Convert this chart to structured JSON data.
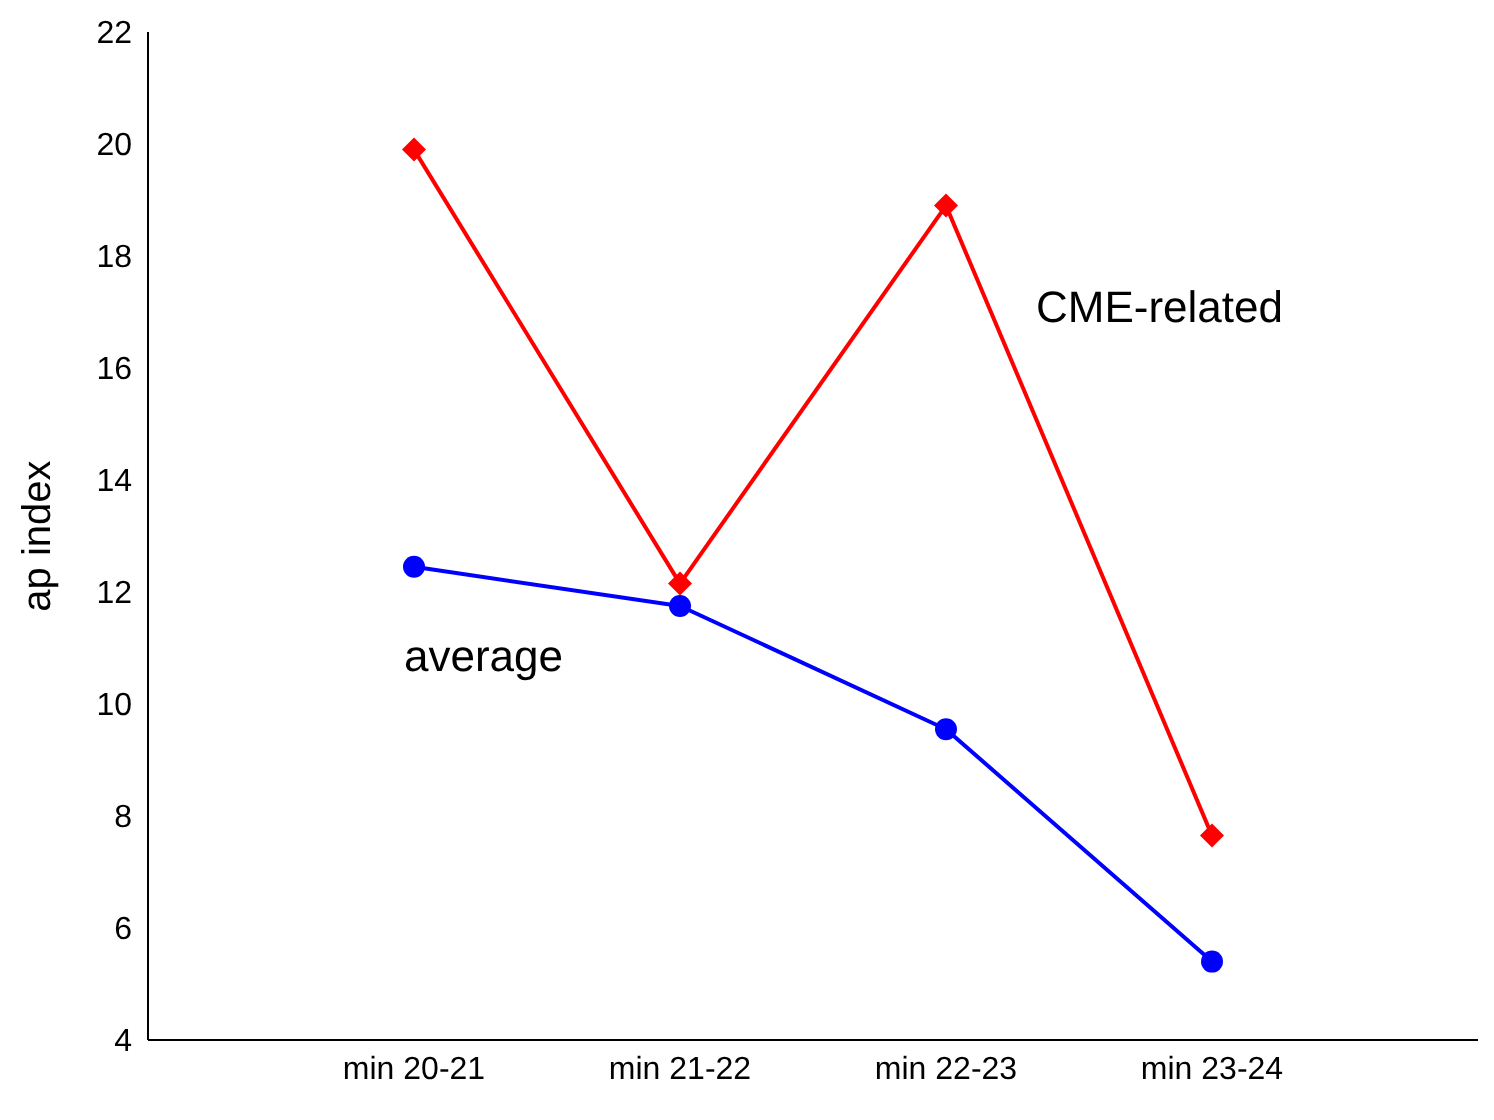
{
  "chart_data": {
    "type": "line",
    "ylabel": "ap index",
    "categories": [
      null,
      "min 20-21",
      "min 21-22",
      "min 22-23",
      "min 23-24",
      null
    ],
    "series": [
      {
        "name": "CME-related",
        "color": "#ff0000",
        "marker": "diamond",
        "values": [
          null,
          19.9,
          12.15,
          18.9,
          7.65,
          null
        ]
      },
      {
        "name": "average",
        "color": "#0000ff",
        "marker": "circle",
        "values": [
          null,
          12.45,
          11.75,
          9.55,
          5.4,
          null
        ]
      }
    ],
    "ylim": [
      4,
      22
    ],
    "yticks": [
      4,
      6,
      8,
      10,
      12,
      14,
      16,
      18,
      20,
      22
    ],
    "grid": false,
    "legend": false,
    "line_style": "solid"
  }
}
